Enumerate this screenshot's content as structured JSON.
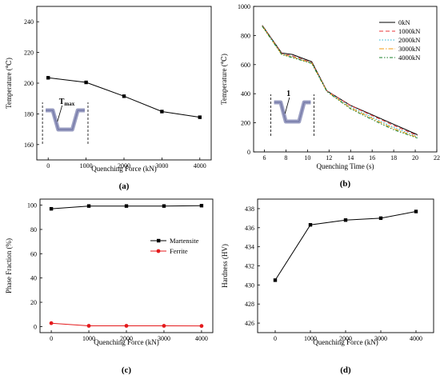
{
  "chart_data": [
    {
      "id": "a",
      "type": "line",
      "panel_label": "(a)",
      "xlabel": "Quenching Force (kN)",
      "ylabel": "Temperature (℃)",
      "xlim": [
        -300,
        4300
      ],
      "ylim": [
        150,
        250
      ],
      "xticks": [
        0,
        1000,
        2000,
        3000,
        4000
      ],
      "yticks": [
        160,
        180,
        200,
        220,
        240
      ],
      "x": [
        0,
        1000,
        2000,
        3000,
        4000
      ],
      "series": [
        {
          "name": "",
          "color": "#000000",
          "marker": "square",
          "dash": "",
          "values": [
            203.5,
            200.5,
            191.5,
            181.5,
            177.8
          ]
        }
      ],
      "inset": {
        "label": "T",
        "label_sub": "max",
        "x_left": -150,
        "x_right": 1050
      }
    },
    {
      "id": "b",
      "type": "line",
      "panel_label": "(b)",
      "xlabel": "Quenching Time (s)",
      "ylabel": "Temperature (℃)",
      "xlim": [
        5,
        22
      ],
      "ylim": [
        0,
        1000
      ],
      "xticks": [
        6,
        8,
        10,
        12,
        14,
        16,
        18,
        20,
        22
      ],
      "yticks": [
        0,
        200,
        400,
        600,
        800,
        1000
      ],
      "x": [
        5.8,
        7.6,
        8.6,
        10.4,
        11.8,
        14,
        16,
        18,
        20.2
      ],
      "legend_position": "top-right",
      "series": [
        {
          "name": "0kN",
          "color": "#000000",
          "dash": "",
          "values": [
            870,
            680,
            670,
            620,
            420,
            320,
            255,
            190,
            118
          ]
        },
        {
          "name": "1000kN",
          "color": "#e8353a",
          "dash": "5,3",
          "values": [
            868,
            677,
            660,
            615,
            420,
            318,
            250,
            182,
            112
          ]
        },
        {
          "name": "2000kN",
          "color": "#26b3cf",
          "dash": "1.5,2",
          "values": [
            866,
            675,
            655,
            612,
            418,
            310,
            238,
            168,
            105
          ]
        },
        {
          "name": "3000kN",
          "color": "#f39c12",
          "dash": "6,2,1.5,2",
          "values": [
            865,
            672,
            652,
            610,
            416,
            302,
            230,
            160,
            100
          ]
        },
        {
          "name": "4000kN",
          "color": "#1a7f2a",
          "dash": "4,2,1.5,2,1.5,2",
          "values": [
            864,
            670,
            648,
            608,
            415,
            296,
            222,
            152,
            95
          ]
        }
      ],
      "inset": {
        "label": "1",
        "x_left": 6.6,
        "x_right": 10.6
      }
    },
    {
      "id": "c",
      "type": "line",
      "panel_label": "(c)",
      "xlabel": "Quenching Force (kN)",
      "ylabel": "Phase Fraction (%)",
      "xlim": [
        -300,
        4300
      ],
      "ylim": [
        -5,
        105
      ],
      "xticks": [
        0,
        1000,
        2000,
        3000,
        4000
      ],
      "yticks": [
        0,
        20,
        40,
        60,
        80,
        100
      ],
      "x": [
        0,
        1000,
        2000,
        3000,
        4000
      ],
      "legend_position": "right",
      "series": [
        {
          "name": "Martensite",
          "color": "#000000",
          "marker": "square",
          "dash": "",
          "values": [
            97,
            99.3,
            99.3,
            99.3,
            99.6
          ]
        },
        {
          "name": "Ferrite",
          "color": "#e41a1c",
          "marker": "circle",
          "dash": "",
          "values": [
            2.8,
            0.6,
            0.6,
            0.6,
            0.5
          ]
        }
      ]
    },
    {
      "id": "d",
      "type": "line",
      "panel_label": "(d)",
      "xlabel": "Quenching Force (kN)",
      "ylabel": "Hardness (HV)",
      "xlim": [
        -500,
        4500
      ],
      "ylim": [
        425,
        439
      ],
      "xticks": [
        0,
        1000,
        2000,
        3000,
        4000
      ],
      "yticks": [
        426,
        428,
        430,
        432,
        434,
        436,
        438
      ],
      "x": [
        0,
        1000,
        2000,
        3000,
        4000
      ],
      "series": [
        {
          "name": "",
          "color": "#000000",
          "marker": "square",
          "dash": "",
          "values": [
            430.5,
            436.3,
            436.8,
            437.0,
            437.7
          ]
        }
      ]
    }
  ]
}
